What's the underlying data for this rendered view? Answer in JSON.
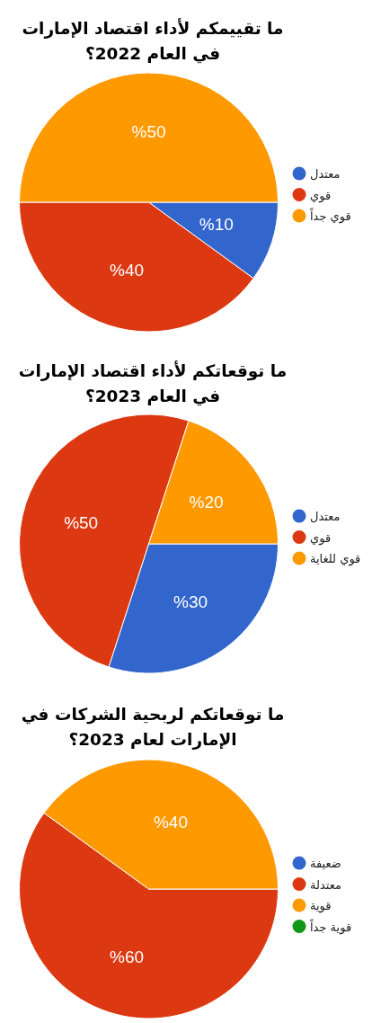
{
  "chart_data": [
    {
      "type": "pie",
      "title": "ما تقييمكم لأداء اقتصاد الإمارات في العام 2022؟",
      "categories": [
        "معتدل",
        "قوي",
        "قوي جداً"
      ],
      "values": [
        10,
        40,
        50
      ],
      "colors": [
        "#3366cc",
        "#dc3912",
        "#ff9900"
      ],
      "value_labels": [
        "%10",
        "%40",
        "%50"
      ],
      "legend": "right"
    },
    {
      "type": "pie",
      "title": "ما توقعاتكم لأداء اقتصاد الإمارات في العام 2023؟",
      "categories": [
        "معتدل",
        "قوي",
        "قوي للغاية"
      ],
      "values": [
        30,
        50,
        20
      ],
      "colors": [
        "#3366cc",
        "#dc3912",
        "#ff9900"
      ],
      "value_labels": [
        "%30",
        "%50",
        "%20"
      ],
      "legend": "right"
    },
    {
      "type": "pie",
      "title": "ما توقعاتكم لربحية الشركات في الإمارات لعام 2023؟",
      "categories": [
        "ضعيفة",
        "معتدلة",
        "قوية",
        "قوية جداً"
      ],
      "values": [
        0,
        60,
        40,
        0
      ],
      "colors": [
        "#3366cc",
        "#dc3912",
        "#ff9900",
        "#109618"
      ],
      "value_labels": [
        null,
        "%60",
        "%40",
        null
      ],
      "legend": "right"
    }
  ]
}
